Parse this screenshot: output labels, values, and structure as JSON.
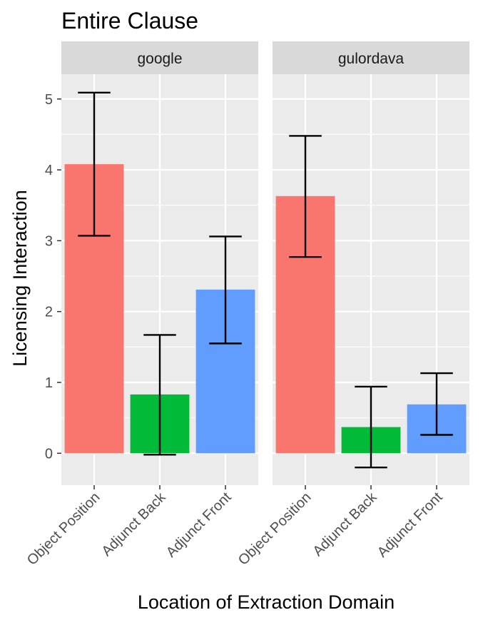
{
  "chart_data": {
    "type": "bar",
    "title": "Entire Clause",
    "xlabel": "Location of Extraction Domain",
    "ylabel": "Licensing Interaction",
    "categories": [
      "Object Position",
      "Adjunct Back",
      "Adjunct Front"
    ],
    "colors": [
      "#F8766D",
      "#00BA38",
      "#619CFF"
    ],
    "ylim": [
      -0.45,
      5.35
    ],
    "yticks": [
      0,
      1,
      2,
      3,
      4,
      5
    ],
    "grid": true,
    "legend": "none",
    "panels": [
      {
        "name": "google",
        "values": [
          4.08,
          0.83,
          2.31
        ],
        "error_low": [
          3.07,
          -0.02,
          1.55
        ],
        "error_high": [
          5.09,
          1.67,
          3.06
        ]
      },
      {
        "name": "gulordava",
        "values": [
          3.63,
          0.37,
          0.69
        ],
        "error_low": [
          2.77,
          -0.2,
          0.26
        ],
        "error_high": [
          4.48,
          0.94,
          1.13
        ]
      }
    ]
  }
}
